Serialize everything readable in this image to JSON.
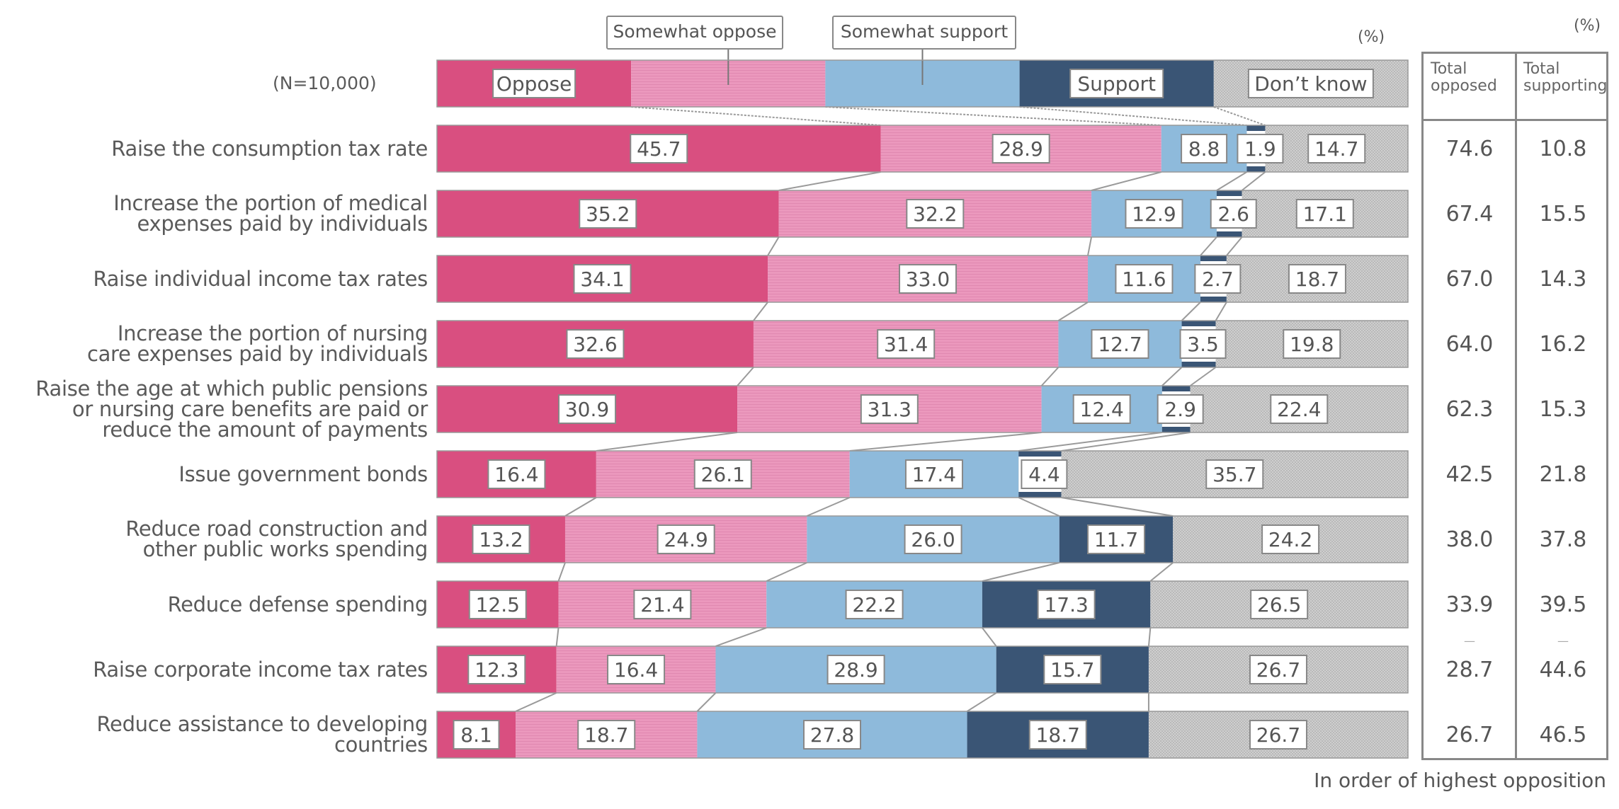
{
  "chart_data": {
    "type": "bar",
    "orientation": "horizontal",
    "stacked": true,
    "normalized_percent": true,
    "sample_label": "(N=10,000)",
    "unit_label": "(%)",
    "table_unit_label": "(%)",
    "footer": "In order of highest opposition",
    "legend": [
      {
        "name": "Oppose",
        "color": "#d94f80",
        "pattern": "solid",
        "callout": false
      },
      {
        "name": "Somewhat oppose",
        "color": "#eb98bd",
        "pattern": "hlines",
        "callout": true
      },
      {
        "name": "Somewhat support",
        "color": "#8ebadb",
        "pattern": "solid",
        "callout": true
      },
      {
        "name": "Support",
        "color": "#3a5575",
        "pattern": "solid",
        "callout": false
      },
      {
        "name": "Don’t know",
        "color": "#c8c8c8",
        "pattern": "dots",
        "callout": false
      }
    ],
    "categories": [
      "Raise the consumption tax rate",
      "Increase the portion of medical\nexpenses paid by individuals",
      "Raise individual income tax rates",
      "Increase the portion of nursing\ncare expenses paid by individuals",
      "Raise the age at which public pensions\nor nursing care benefits are paid or\nreduce the amount of payments",
      "Issue government bonds",
      "Reduce road construction and\nother public works spending",
      "Reduce defense spending",
      "Raise corporate income tax rates",
      "Reduce assistance to developing\ncountries"
    ],
    "series": [
      {
        "name": "Oppose",
        "values": [
          45.7,
          35.2,
          34.1,
          32.6,
          30.9,
          16.4,
          13.2,
          12.5,
          12.3,
          8.1
        ]
      },
      {
        "name": "Somewhat oppose",
        "values": [
          28.9,
          32.2,
          33.0,
          31.4,
          31.3,
          26.1,
          24.9,
          21.4,
          16.4,
          18.7
        ]
      },
      {
        "name": "Somewhat support",
        "values": [
          8.8,
          12.9,
          11.6,
          12.7,
          12.4,
          17.4,
          26.0,
          22.2,
          28.9,
          27.8
        ]
      },
      {
        "name": "Support",
        "values": [
          1.9,
          2.6,
          2.7,
          3.5,
          2.9,
          4.4,
          11.7,
          17.3,
          15.7,
          18.7
        ]
      },
      {
        "name": "Don’t know",
        "values": [
          14.7,
          17.1,
          18.7,
          19.8,
          22.4,
          35.7,
          24.2,
          26.5,
          26.7,
          26.7
        ]
      }
    ],
    "table": {
      "headers": [
        "Total\nopposed",
        "Total\nsupporting"
      ],
      "total_opposed": [
        "74.6",
        "67.4",
        "67.0",
        "64.0",
        "62.3",
        "42.5",
        "38.0",
        "33.9",
        "28.7",
        "26.7"
      ],
      "total_supporting": [
        "10.8",
        "15.5",
        "14.3",
        "16.2",
        "15.3",
        "21.8",
        "37.8",
        "39.5",
        "44.6",
        "46.5"
      ],
      "separator_after_row": 8,
      "separator_mark": "—"
    },
    "xlim": [
      0,
      100
    ]
  }
}
